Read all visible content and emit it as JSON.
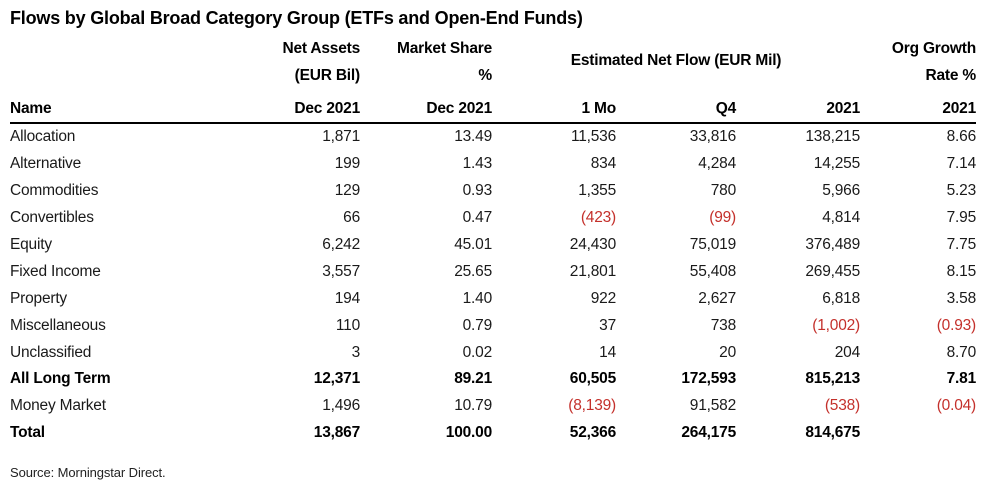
{
  "title": "Flows by Global Broad Category Group (ETFs and Open-End Funds)",
  "source": "Source: Morningstar Direct.",
  "colors": {
    "negative": "#C4302B",
    "text": "#1A1A1A",
    "header_rule": "#000000"
  },
  "header": {
    "name_label": "Name",
    "net_assets": {
      "line1": "Net Assets",
      "line2": "(EUR Bil)",
      "sub": "Dec 2021"
    },
    "market_share": {
      "line1": "Market Share",
      "line2": "%",
      "sub": "Dec 2021"
    },
    "flow": {
      "label": "Estimated Net Flow (EUR Mil)",
      "subs": [
        "1 Mo",
        "Q4",
        "2021"
      ]
    },
    "org_growth": {
      "line1": "Org Growth",
      "line2": "Rate %",
      "sub": "2021"
    }
  },
  "columns": [
    "Name",
    "Net Assets (EUR Bil) Dec 2021",
    "Market Share % Dec 2021",
    "Estimated Net Flow (EUR Mil) 1 Mo",
    "Estimated Net Flow (EUR Mil) Q4",
    "Estimated Net Flow (EUR Mil) 2021",
    "Org Growth Rate % 2021"
  ],
  "rows": [
    {
      "name": "Allocation",
      "bold": false,
      "cells": [
        "1,871",
        "13.49",
        "11,536",
        "33,816",
        "138,215",
        "8.66"
      ]
    },
    {
      "name": "Alternative",
      "bold": false,
      "cells": [
        "199",
        "1.43",
        "834",
        "4,284",
        "14,255",
        "7.14"
      ]
    },
    {
      "name": "Commodities",
      "bold": false,
      "cells": [
        "129",
        "0.93",
        "1,355",
        "780",
        "5,966",
        "5.23"
      ]
    },
    {
      "name": "Convertibles",
      "bold": false,
      "cells": [
        "66",
        "0.47",
        "(423)",
        "(99)",
        "4,814",
        "7.95"
      ]
    },
    {
      "name": "Equity",
      "bold": false,
      "cells": [
        "6,242",
        "45.01",
        "24,430",
        "75,019",
        "376,489",
        "7.75"
      ]
    },
    {
      "name": "Fixed Income",
      "bold": false,
      "cells": [
        "3,557",
        "25.65",
        "21,801",
        "55,408",
        "269,455",
        "8.15"
      ]
    },
    {
      "name": "Property",
      "bold": false,
      "cells": [
        "194",
        "1.40",
        "922",
        "2,627",
        "6,818",
        "3.58"
      ]
    },
    {
      "name": "Miscellaneous",
      "bold": false,
      "cells": [
        "110",
        "0.79",
        "37",
        "738",
        "(1,002)",
        "(0.93)"
      ]
    },
    {
      "name": "Unclassified",
      "bold": false,
      "cells": [
        "3",
        "0.02",
        "14",
        "20",
        "204",
        "8.70"
      ]
    },
    {
      "name": "All Long Term",
      "bold": true,
      "cells": [
        "12,371",
        "89.21",
        "60,505",
        "172,593",
        "815,213",
        "7.81"
      ]
    },
    {
      "name": "Money Market",
      "bold": false,
      "cells": [
        "1,496",
        "10.79",
        "(8,139)",
        "91,582",
        "(538)",
        "(0.04)"
      ]
    },
    {
      "name": "Total",
      "bold": true,
      "cells": [
        "13,867",
        "100.00",
        "52,366",
        "264,175",
        "814,675",
        ""
      ]
    }
  ]
}
